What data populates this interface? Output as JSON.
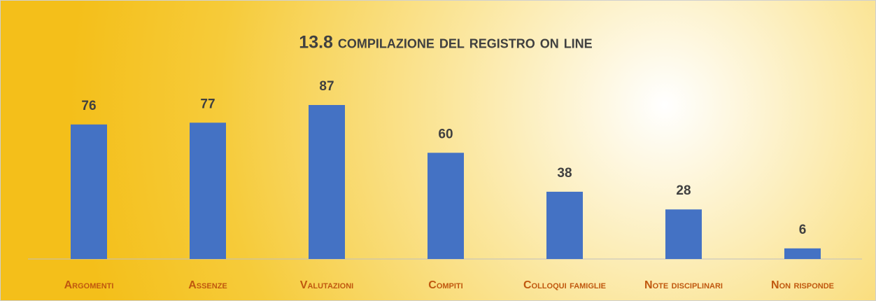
{
  "chart_data": {
    "type": "bar",
    "title": "13.8 compilazione del registro on line",
    "categories": [
      "Argomenti",
      "Assenze",
      "Valutazioni",
      "Compiti",
      "Colloqui famiglie",
      "Note disciplinari",
      "Non risponde"
    ],
    "values": [
      76,
      77,
      87,
      60,
      38,
      28,
      6
    ],
    "color": "#4472c4"
  }
}
